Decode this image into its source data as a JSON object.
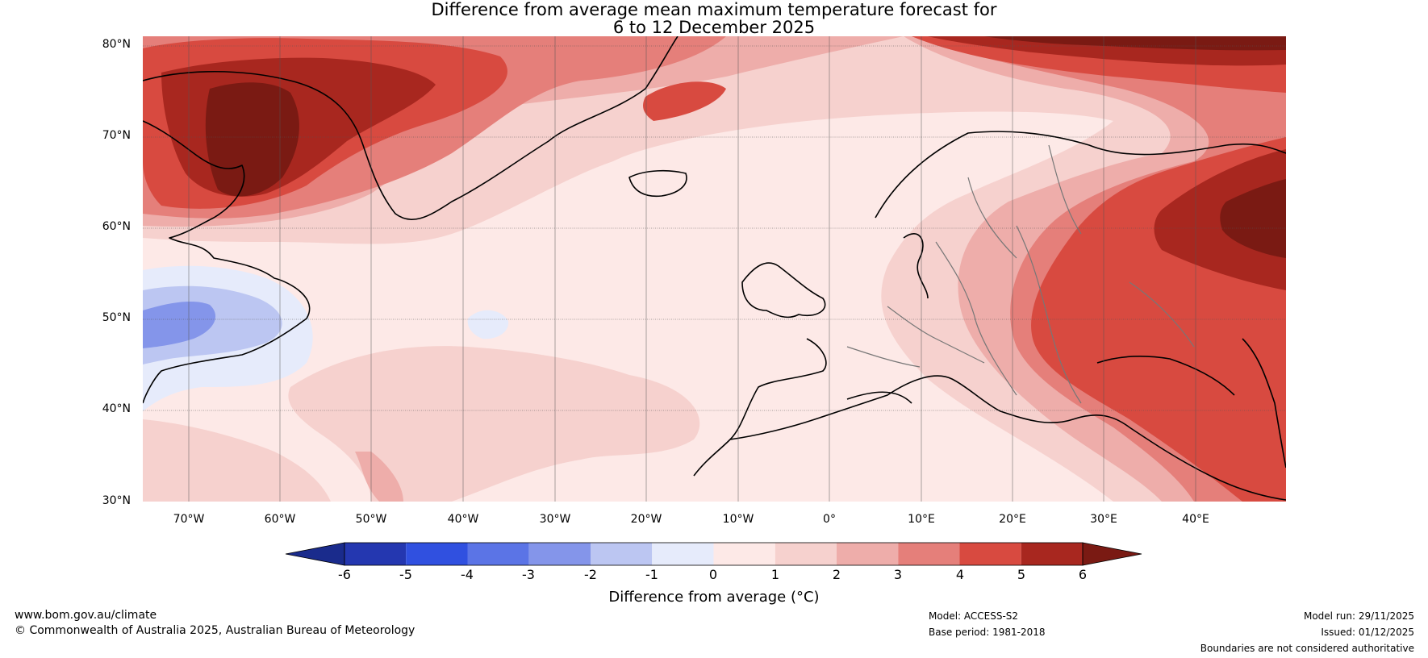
{
  "title_line1": "Difference from average mean maximum temperature forecast for",
  "title_line2": "6 to 12 December 2025",
  "lat_labels": [
    "80°N",
    "70°N",
    "60°N",
    "50°N",
    "40°N",
    "30°N"
  ],
  "lon_labels": [
    "70°W",
    "60°W",
    "50°W",
    "40°W",
    "30°W",
    "20°W",
    "10°W",
    "0°",
    "10°E",
    "20°E",
    "30°E",
    "40°E"
  ],
  "colorbar": {
    "ticks": [
      "-6",
      "-5",
      "-4",
      "-3",
      "-2",
      "-1",
      "0",
      "1",
      "2",
      "3",
      "4",
      "5",
      "6"
    ],
    "colors": [
      "#1a2b8c",
      "#2437b0",
      "#3050e0",
      "#5b74e6",
      "#8495ea",
      "#bcc6f2",
      "#e6ebfb",
      "#fde9e7",
      "#f6d1ce",
      "#eeadaa",
      "#e57f7a",
      "#d84a40",
      "#a8271f",
      "#7a1a13"
    ],
    "label": "Difference from average (°C)"
  },
  "footer": {
    "website": "www.bom.gov.au/climate",
    "copyright": "© Commonwealth of Australia 2025, Australian Bureau of Meteorology",
    "model": "Model: ACCESS-S2",
    "base_period": "Base period: 1981-2018",
    "model_run": "Model run: 29/11/2025",
    "issued": "Issued: 01/12/2025",
    "disclaimer": "Boundaries are not considered authoritative"
  }
}
